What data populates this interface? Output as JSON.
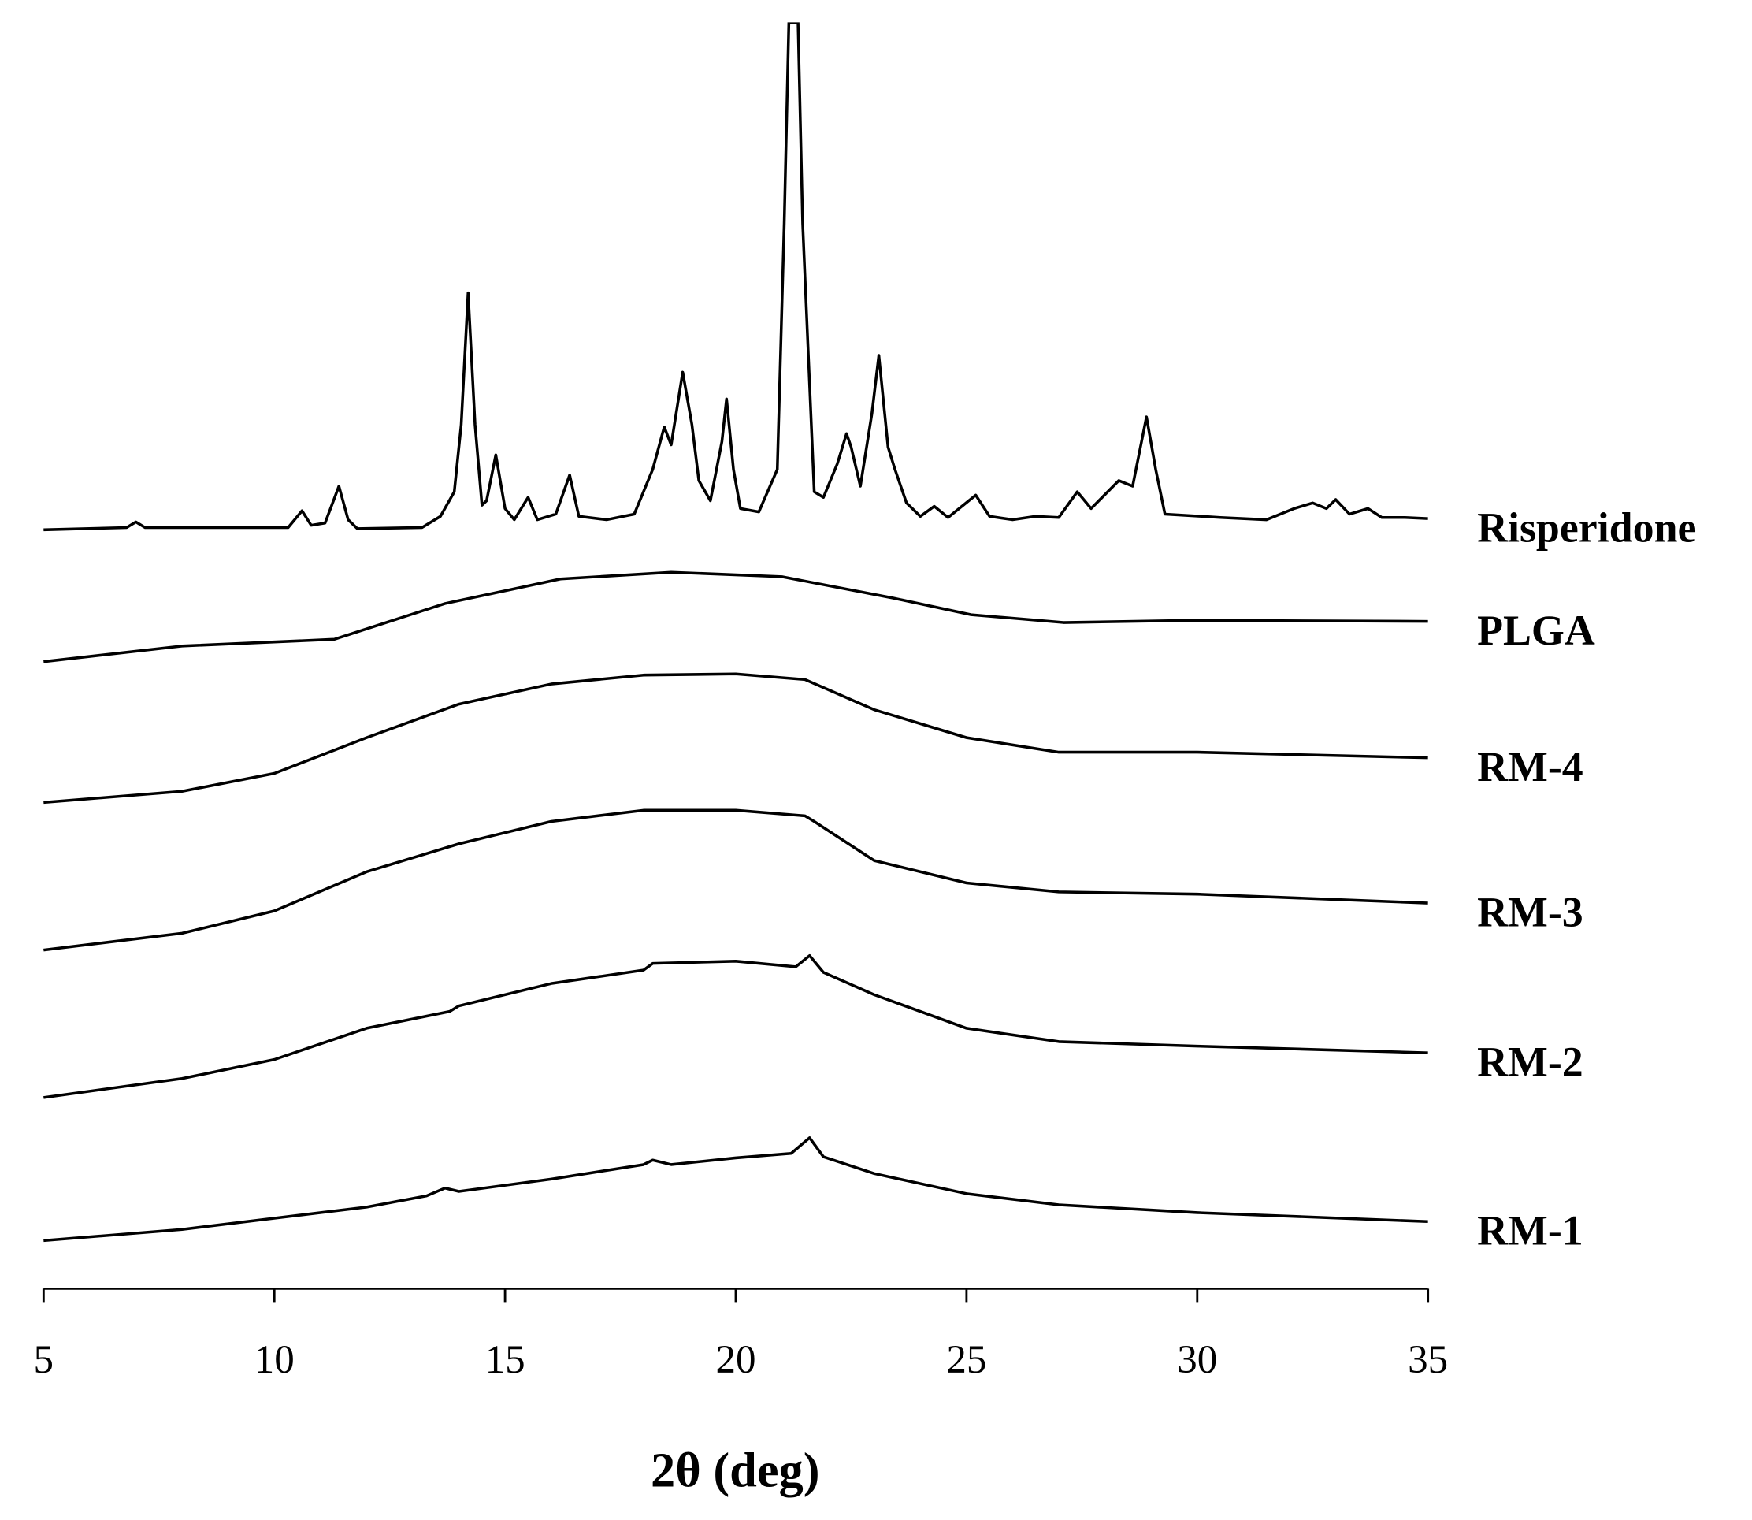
{
  "chart_data": {
    "type": "line",
    "xlabel": "2θ (deg)",
    "xlim": [
      5,
      35
    ],
    "xticks": [
      5,
      10,
      15,
      20,
      25,
      30,
      35
    ],
    "ylim": [
      0,
      1133
    ],
    "color": "#000000",
    "series": [
      {
        "name": "Risperidone",
        "x": [
          5,
          6.8,
          7,
          7.2,
          10.3,
          10.6,
          10.8,
          11.1,
          11.4,
          11.6,
          11.8,
          13.2,
          13.6,
          13.9,
          14.05,
          14.2,
          14.35,
          14.5,
          14.6,
          14.8,
          15,
          15.2,
          15.5,
          15.7,
          16.1,
          16.4,
          16.6,
          17.2,
          17.8,
          18.2,
          18.45,
          18.6,
          18.85,
          19.05,
          19.2,
          19.45,
          19.7,
          19.8,
          19.95,
          20.1,
          20.5,
          20.9,
          21.05,
          21.15,
          21.35,
          21.45,
          21.7,
          21.9,
          22.2,
          22.4,
          22.5,
          22.7,
          22.95,
          23.1,
          23.3,
          23.45,
          23.7,
          24,
          24.3,
          24.6,
          25.2,
          25.5,
          26,
          26.5,
          27,
          27.4,
          27.7,
          28.3,
          28.6,
          28.9,
          29.1,
          29.3,
          30.5,
          31.5,
          32.1,
          32.5,
          32.8,
          33,
          33.3,
          33.7,
          34,
          34.5,
          35
        ],
        "values": [
          679,
          681,
          686,
          681,
          681,
          696,
          683,
          685,
          718,
          688,
          680,
          681,
          691,
          713,
          773,
          891,
          773,
          701,
          705,
          746,
          698,
          688,
          708,
          688,
          693,
          728,
          691,
          688,
          693,
          733,
          771,
          755,
          820,
          773,
          723,
          705,
          758,
          796,
          733,
          698,
          695,
          733,
          953,
          1133,
          1133,
          953,
          713,
          708,
          738,
          765,
          753,
          718,
          783,
          835,
          753,
          733,
          703,
          691,
          700,
          690,
          710,
          691,
          688,
          691,
          690,
          713,
          698,
          723,
          718,
          780,
          733,
          693,
          690,
          688,
          698,
          703,
          698,
          706,
          693,
          698,
          690,
          690,
          689
        ]
      },
      {
        "name": "PLGA",
        "x": [
          5,
          8,
          11.3,
          13.7,
          16.2,
          18.6,
          21,
          23.4,
          25.1,
          27.1,
          30,
          35
        ],
        "values": [
          561,
          575,
          581,
          613,
          635,
          641,
          637,
          618,
          603,
          596,
          598,
          597
        ]
      },
      {
        "name": "RM-4",
        "x": [
          5,
          8,
          10,
          12,
          14,
          16,
          18,
          20,
          21.5,
          23,
          25,
          27,
          30,
          35
        ],
        "values": [
          435,
          445,
          461,
          493,
          523,
          541,
          549,
          550,
          545,
          518,
          493,
          480,
          480,
          475
        ]
      },
      {
        "name": "RM-3",
        "x": [
          5,
          8,
          10,
          12,
          14,
          16,
          18,
          20,
          21.5,
          21.7,
          23,
          25,
          27,
          30,
          35
        ],
        "values": [
          303,
          318,
          338,
          373,
          398,
          418,
          428,
          428,
          423,
          418,
          383,
          363,
          355,
          353,
          345
        ]
      },
      {
        "name": "RM-2",
        "x": [
          5,
          8,
          10,
          12,
          13.8,
          14,
          16,
          18,
          18.2,
          20,
          21.3,
          21.6,
          21.9,
          23,
          25,
          27,
          30,
          35
        ],
        "values": [
          171,
          188,
          205,
          233,
          248,
          253,
          273,
          285,
          291,
          293,
          288,
          298,
          283,
          263,
          233,
          221,
          217,
          211
        ]
      },
      {
        "name": "RM-1",
        "x": [
          5,
          8,
          10,
          12,
          13.3,
          13.7,
          14,
          16,
          18,
          18.2,
          18.6,
          20,
          21.2,
          21.6,
          21.9,
          23,
          25,
          27,
          30,
          35
        ],
        "values": [
          43,
          53,
          63,
          73,
          83,
          90,
          87,
          98,
          111,
          115,
          111,
          117,
          121,
          135,
          118,
          103,
          85,
          75,
          68,
          60
        ]
      }
    ]
  }
}
